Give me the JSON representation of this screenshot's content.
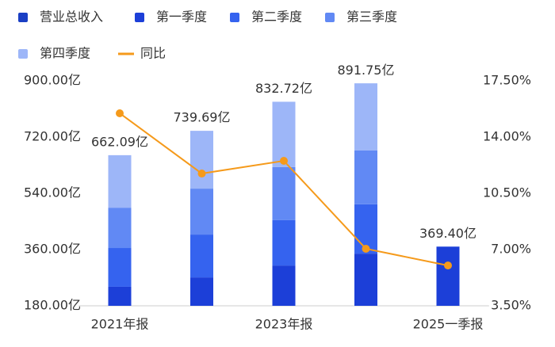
{
  "chart_data": {
    "type": "bar",
    "categories": [
      "2021年报",
      null,
      "2023年报",
      null,
      "2025一季报"
    ],
    "series": [
      {
        "name": "营业总收入",
        "color": "#1a3fc4",
        "stack": false,
        "values": [
          662.09,
          739.69,
          832.72,
          891.75,
          369.4
        ],
        "value_labels": [
          "662.09亿",
          "739.69亿",
          "832.72亿",
          "891.75亿",
          "369.40亿"
        ]
      },
      {
        "name": "第一季度",
        "color": "#1c3fd8",
        "values": [
          241,
          271,
          309,
          347,
          369.4
        ]
      },
      {
        "name": "第二季度",
        "color": "#3563ef",
        "values": [
          124,
          137,
          145,
          158,
          null
        ]
      },
      {
        "name": "第三季度",
        "color": "#6189f4",
        "values": [
          129,
          147,
          170,
          172,
          null
        ]
      },
      {
        "name": "第四季度",
        "color": "#9db6f8",
        "values": [
          168,
          185,
          209,
          215,
          null
        ]
      },
      {
        "name": "同比",
        "color": "#f59a1b",
        "type": "line",
        "axis": "y2",
        "values": [
          15.48,
          11.73,
          12.52,
          7.05,
          6.01
        ]
      }
    ],
    "ylim": [
      180,
      900
    ],
    "yticks": [
      {
        "value": 180,
        "label": "180.00亿"
      },
      {
        "value": 360,
        "label": "360.00亿"
      },
      {
        "value": 540,
        "label": "540.00亿"
      },
      {
        "value": 720,
        "label": "720.00亿"
      },
      {
        "value": 900,
        "label": "900.00亿"
      }
    ],
    "y2lim": [
      3.5,
      17.5
    ],
    "y2ticks": [
      {
        "value": 3.5,
        "label": "3.50%"
      },
      {
        "value": 7,
        "label": "7.00%"
      },
      {
        "value": 10.5,
        "label": "10.50%"
      },
      {
        "value": 14,
        "label": "14.00%"
      },
      {
        "value": 17.5,
        "label": "17.50%"
      }
    ]
  }
}
